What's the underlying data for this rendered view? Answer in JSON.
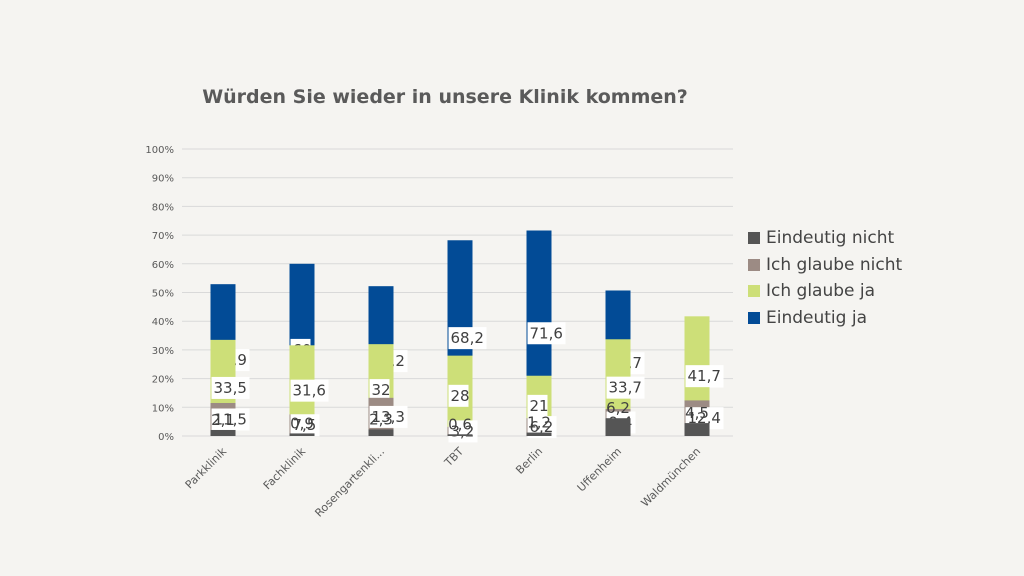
{
  "chart_data": {
    "type": "stacked_bar_100",
    "title": "Würden Sie wieder in unsere Klinik kommen?",
    "categories": [
      "Parkklinik",
      "Fachklinik",
      "Rosengartenkli...",
      "TBT",
      "Berlin",
      "Uffenheim",
      "Waldmünchen"
    ],
    "series": [
      {
        "name": "Eindeutig ja",
        "color": "#024b96",
        "values": [
          52.9,
          60,
          52.2,
          68.2,
          71.6,
          50.7,
          41.4
        ]
      },
      {
        "name": "Ich glaube ja",
        "color": "#cddf78",
        "values": [
          33.5,
          31.6,
          32,
          28,
          21,
          33.7,
          41.7
        ]
      },
      {
        "name": "Ich glaube nicht",
        "color": "#9c8b84",
        "values": [
          11.5,
          7.5,
          13.3,
          3.2,
          6.2,
          9.4,
          12.4
        ]
      },
      {
        "name": "Eindeutig nicht",
        "color": "#555555",
        "values": [
          2.1,
          0.9,
          2.3,
          0.6,
          1.2,
          6.2,
          4.5
        ]
      }
    ],
    "legend_order": [
      "Eindeutig nicht",
      "Ich glaube nicht",
      "Ich glaube ja",
      "Eindeutig ja"
    ],
    "yticks": [
      "0%",
      "10%",
      "20%",
      "30%",
      "40%",
      "50%",
      "60%",
      "70%",
      "80%",
      "90%",
      "100%"
    ],
    "ylim": [
      0,
      100
    ],
    "legend_position": "right",
    "grid": true
  }
}
